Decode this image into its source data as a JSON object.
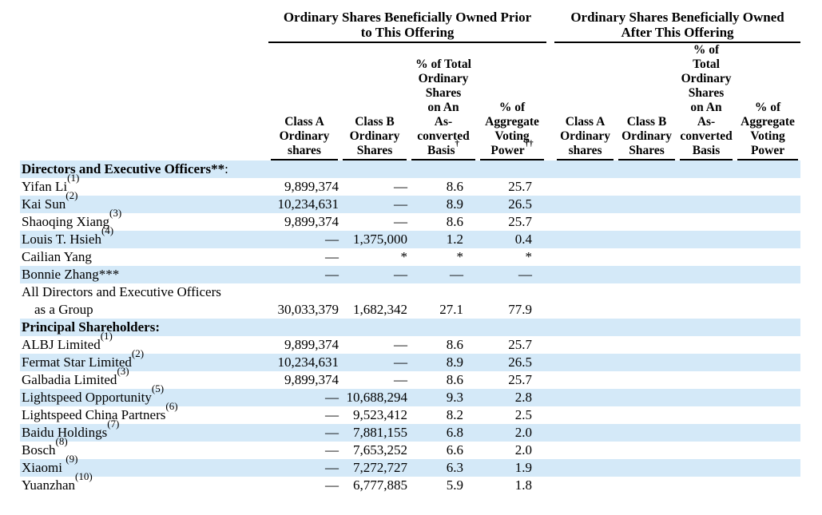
{
  "colors": {
    "stripe_blue": "#d4e9f8",
    "text": "#000000",
    "rule": "#000000",
    "background": "#ffffff"
  },
  "table": {
    "groups": [
      {
        "title": "Ordinary Shares Beneficially Owned Prior\nto This Offering"
      },
      {
        "title": "Ordinary Shares Beneficially Owned\nAfter This Offering"
      }
    ],
    "columns": [
      {
        "label": "Class A\nOrdinary\nshares",
        "sup": ""
      },
      {
        "label": "Class B\nOrdinary\nShares",
        "sup": ""
      },
      {
        "label": "% of Total\nOrdinary\nShares\non An\nAs-\nconverted\nBasis",
        "sup": "†"
      },
      {
        "label": "% of\nAggregate\nVoting\nPower",
        "sup": "††"
      },
      {
        "label": "Class A\nOrdinary\nshares",
        "sup": ""
      },
      {
        "label": "Class B\nOrdinary\nShares",
        "sup": ""
      },
      {
        "label": "% of\nTotal\nOrdinary\nShares\non An\nAs-\nconverted\nBasis",
        "sup": ""
      },
      {
        "label": "% of\nAggregate\nVoting\nPower",
        "sup": ""
      }
    ],
    "rows": [
      {
        "type": "section",
        "bold": "Directors and Executive Officers**",
        "plain": ":"
      },
      {
        "type": "data",
        "name": "Yifan Li",
        "sup": "(1)",
        "line2": "",
        "prior": [
          "9,899,374",
          "—",
          "8.6",
          "25.7"
        ],
        "after": [
          "",
          "",
          "",
          ""
        ]
      },
      {
        "type": "data",
        "name": "Kai Sun",
        "sup": "(2)",
        "line2": "",
        "prior": [
          "10,234,631",
          "—",
          "8.9",
          "26.5"
        ],
        "after": [
          "",
          "",
          "",
          ""
        ]
      },
      {
        "type": "data",
        "name": "Shaoqing Xiang",
        "sup": "(3)",
        "line2": "",
        "prior": [
          "9,899,374",
          "—",
          "8.6",
          "25.7"
        ],
        "after": [
          "",
          "",
          "",
          ""
        ]
      },
      {
        "type": "data",
        "name": "Louis T. Hsieh",
        "sup": "(4)",
        "line2": "",
        "prior": [
          "—",
          "1,375,000",
          "1.2",
          "0.4"
        ],
        "after": [
          "",
          "",
          "",
          ""
        ]
      },
      {
        "type": "data",
        "name": "Cailian Yang",
        "sup": "",
        "line2": "",
        "prior": [
          "—",
          "*",
          "*",
          "*"
        ],
        "after": [
          "",
          "",
          "",
          ""
        ]
      },
      {
        "type": "data",
        "name": "Bonnie Zhang***",
        "sup": "",
        "line2": "",
        "prior": [
          "—",
          "—",
          "—",
          "—"
        ],
        "after": [
          "",
          "",
          "",
          ""
        ]
      },
      {
        "type": "data",
        "name": "All Directors and Executive Officers",
        "sup": "",
        "line2": "as a Group",
        "prior": [
          "30,033,379",
          "1,682,342",
          "27.1",
          "77.9"
        ],
        "after": [
          "",
          "",
          "",
          ""
        ]
      },
      {
        "type": "section",
        "bold": "Principal Shareholders:",
        "plain": ""
      },
      {
        "type": "data",
        "name": "ALBJ Limited",
        "sup": "(1)",
        "line2": "",
        "prior": [
          "9,899,374",
          "—",
          "8.6",
          "25.7"
        ],
        "after": [
          "",
          "",
          "",
          ""
        ]
      },
      {
        "type": "data",
        "name": "Fermat Star Limited",
        "sup": "(2)",
        "line2": "",
        "prior": [
          "10,234,631",
          "—",
          "8.9",
          "26.5"
        ],
        "after": [
          "",
          "",
          "",
          ""
        ]
      },
      {
        "type": "data",
        "name": "Galbadia Limited",
        "sup": "(3)",
        "line2": "",
        "prior": [
          "9,899,374",
          "—",
          "8.6",
          "25.7"
        ],
        "after": [
          "",
          "",
          "",
          ""
        ]
      },
      {
        "type": "data",
        "name": "Lightspeed Opportunity",
        "sup": "(5)",
        "line2": "",
        "prior": [
          "—",
          "10,688,294",
          "9.3",
          "2.8"
        ],
        "after": [
          "",
          "",
          "",
          ""
        ]
      },
      {
        "type": "data",
        "name": "Lightspeed China Partners",
        "sup": "(6)",
        "line2": "",
        "prior": [
          "—",
          "9,523,412",
          "8.2",
          "2.5"
        ],
        "after": [
          "",
          "",
          "",
          ""
        ]
      },
      {
        "type": "data",
        "name": "Baidu Holdings",
        "sup": "(7)",
        "line2": "",
        "prior": [
          "—",
          "7,881,155",
          "6.8",
          "2.0"
        ],
        "after": [
          "",
          "",
          "",
          ""
        ]
      },
      {
        "type": "data",
        "name": "Bosch",
        "sup": "(8)",
        "line2": "",
        "prior": [
          "—",
          "7,653,252",
          "6.6",
          "2.0"
        ],
        "after": [
          "",
          "",
          "",
          ""
        ]
      },
      {
        "type": "data",
        "name": "Xiaomi ",
        "sup": "(9)",
        "line2": "",
        "prior": [
          "—",
          "7,272,727",
          "6.3",
          "1.9"
        ],
        "after": [
          "",
          "",
          "",
          ""
        ]
      },
      {
        "type": "data",
        "name": "Yuanzhan",
        "sup": "(10)",
        "line2": "",
        "prior": [
          "—",
          "6,777,885",
          "5.9",
          "1.8"
        ],
        "after": [
          "",
          "",
          "",
          ""
        ]
      }
    ]
  }
}
